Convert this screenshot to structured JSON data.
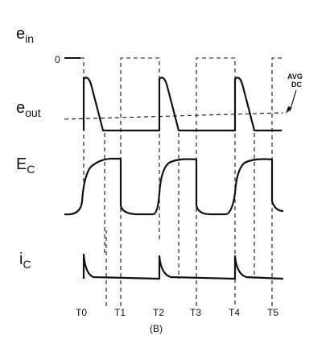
{
  "signals": {
    "ein": {
      "main": "e",
      "sub": "in"
    },
    "eout": {
      "main": "e",
      "sub": "out"
    },
    "Ec": {
      "main": "E",
      "sub": "C"
    },
    "ic": {
      "main": "i",
      "sub": "C"
    }
  },
  "zero_label": "0",
  "avg_dc_label": [
    "AVG",
    "DC"
  ],
  "time_markers": [
    "T0",
    "T1",
    "T2",
    "T3",
    "T4",
    "T5"
  ],
  "caption": "(B)"
}
